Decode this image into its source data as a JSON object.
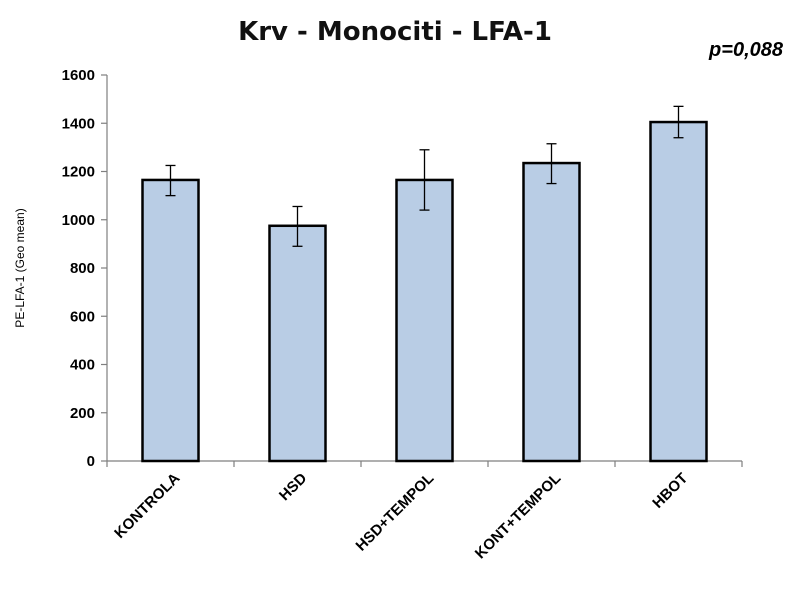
{
  "chart_data": {
    "type": "bar",
    "title": "Krv - Monociti - LFA-1",
    "annotation": "p=0,088",
    "ylabel": "PE-LFA-1 (Geo  mean)",
    "xlabel": "",
    "ylim": [
      0,
      1600
    ],
    "yticks": [
      0,
      200,
      400,
      600,
      800,
      1000,
      1200,
      1400,
      1600
    ],
    "categories": [
      "KONTROLA",
      "HSD",
      "HSD+TEMPOL",
      "KONT+TEMPOL",
      "HBOT"
    ],
    "values": [
      1165,
      975,
      1165,
      1235,
      1405
    ],
    "error_low": [
      1100,
      890,
      1040,
      1150,
      1340
    ],
    "error_high": [
      1225,
      1055,
      1290,
      1315,
      1470
    ],
    "bar_color": "#b9cde5",
    "bar_edge_color": "#000000",
    "grid": false,
    "legend": "none"
  }
}
